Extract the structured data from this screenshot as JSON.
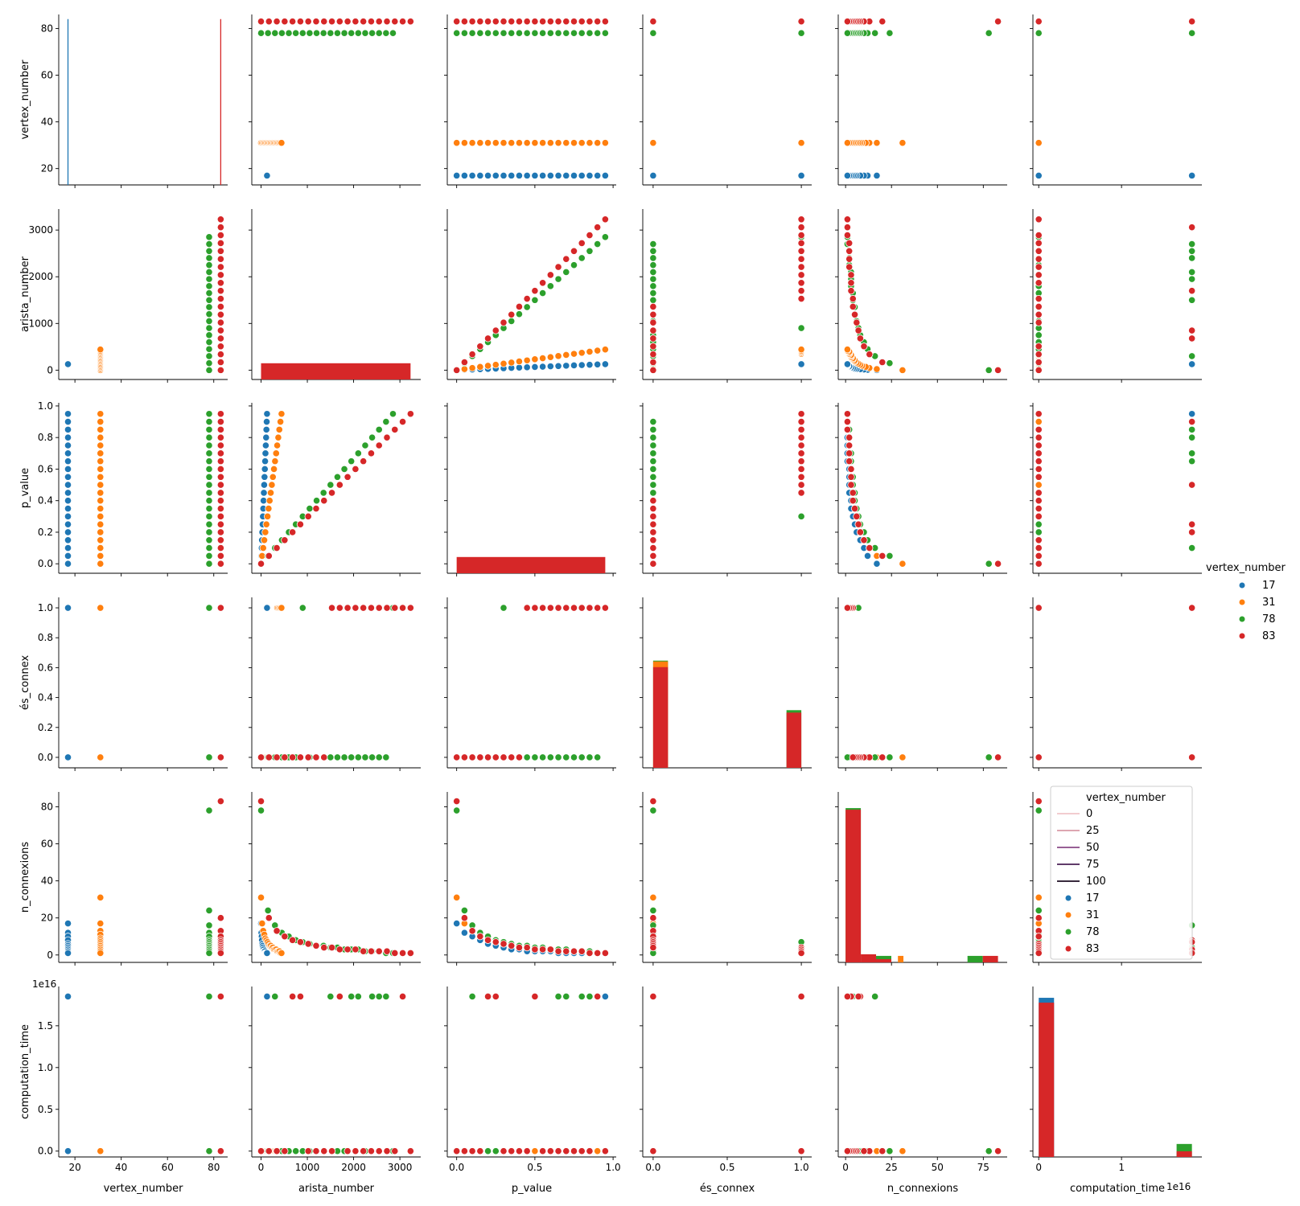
{
  "colors": {
    "17": "#1f77b4",
    "31": "#ff7f0e",
    "78": "#2ca02c",
    "83": "#d62728"
  },
  "legend": {
    "title": "vertex_number",
    "entries": [
      "17",
      "31",
      "78",
      "83"
    ]
  },
  "inner_legend": {
    "title": "vertex_number",
    "lines": [
      {
        "label": "0",
        "color": "#f0c4c8"
      },
      {
        "label": "25",
        "color": "#d89aa6"
      },
      {
        "label": "50",
        "color": "#8a4a86"
      },
      {
        "label": "75",
        "color": "#4a1f55"
      },
      {
        "label": "100",
        "color": "#1b0b20"
      }
    ],
    "dots": [
      "17",
      "31",
      "78",
      "83"
    ]
  },
  "offset_labels": {
    "y": "1e16",
    "x": "1e16"
  },
  "chart_data": {
    "type": "scatter",
    "variables": [
      "vertex_number",
      "arista_number",
      "p_value",
      "és_connex",
      "n_connexions",
      "computation_time"
    ],
    "hue": "vertex_number",
    "groups": [
      "17",
      "31",
      "78",
      "83"
    ],
    "axes": {
      "vertex_number": {
        "range": [
          13,
          86
        ],
        "ticks": [
          20,
          40,
          60,
          80
        ],
        "labels": [
          "20",
          "40",
          "60",
          "80"
        ]
      },
      "arista_number": {
        "range": [
          -200,
          3450
        ],
        "ticks": [
          0,
          1000,
          2000,
          3000
        ],
        "labels": [
          "0",
          "1000",
          "2000",
          "3000"
        ]
      },
      "p_value": {
        "range": [
          -0.06,
          1.02
        ],
        "ticks": [
          0.0,
          0.5,
          1.0
        ],
        "labels": [
          "0.0",
          "0.5",
          "1.0"
        ],
        "yticks": [
          0.0,
          0.2,
          0.4,
          0.6,
          0.8,
          1.0
        ],
        "ylabels": [
          "0.0",
          "0.2",
          "0.4",
          "0.6",
          "0.8",
          "1.0"
        ]
      },
      "és_connex": {
        "range": [
          -0.07,
          1.07
        ],
        "ticks": [
          0.0,
          0.5,
          1.0
        ],
        "labels": [
          "0.0",
          "0.5",
          "1.0"
        ],
        "yticks": [
          0.0,
          0.2,
          0.4,
          0.6,
          0.8,
          1.0
        ],
        "ylabels": [
          "0.0",
          "0.2",
          "0.4",
          "0.6",
          "0.8",
          "1.0"
        ]
      },
      "n_connexions": {
        "range": [
          -4,
          88
        ],
        "ticks": [
          0,
          25,
          50,
          75
        ],
        "labels": [
          "0",
          "25",
          "50",
          "75"
        ],
        "yticks": [
          0,
          20,
          40,
          60,
          80
        ],
        "ylabels": [
          "0",
          "20",
          "40",
          "60",
          "80"
        ]
      },
      "computation_time": {
        "range": [
          -0.07,
          1.97
        ],
        "ticks": [
          0,
          1
        ],
        "labels": [
          "0",
          "1"
        ],
        "yticks": [
          0.0,
          0.5,
          1.0,
          1.5
        ],
        "ylabels": [
          "0.0",
          "0.5",
          "1.0",
          "1.5"
        ]
      }
    },
    "data": {
      "p_values": [
        0.0,
        0.05,
        0.1,
        0.15,
        0.2,
        0.25,
        0.3,
        0.35,
        0.4,
        0.45,
        0.5,
        0.55,
        0.6,
        0.65,
        0.7,
        0.75,
        0.8,
        0.85,
        0.9,
        0.95
      ],
      "17": {
        "arista_number": [
          0,
          7,
          14,
          20,
          27,
          34,
          41,
          48,
          54,
          61,
          68,
          75,
          82,
          88,
          95,
          102,
          109,
          116,
          122,
          129
        ],
        "és_connex": [
          0,
          0,
          0,
          0,
          0,
          0,
          0,
          0,
          0,
          0,
          0,
          0,
          0,
          0,
          0,
          0,
          0,
          0,
          0,
          1
        ],
        "n_connexions": [
          17,
          12,
          10,
          8,
          6,
          5,
          4,
          3,
          3,
          2,
          2,
          2,
          2,
          1,
          1,
          1,
          1,
          1,
          1,
          1
        ],
        "computation_time": [
          0,
          0,
          0,
          0,
          0,
          0,
          0,
          0,
          0,
          0,
          0,
          0,
          0,
          0,
          0,
          0,
          0,
          0,
          0,
          1.85
        ]
      },
      "31": {
        "arista_number": [
          0,
          23,
          47,
          70,
          93,
          116,
          140,
          163,
          186,
          209,
          233,
          256,
          279,
          302,
          326,
          349,
          372,
          395,
          419,
          442
        ],
        "és_connex": [
          0,
          0,
          0,
          0,
          0,
          0,
          0,
          0,
          0,
          0,
          0,
          0,
          0,
          0,
          0,
          1,
          1,
          1,
          1,
          1
        ],
        "n_connexions": [
          31,
          17,
          13,
          11,
          9,
          8,
          7,
          6,
          5,
          5,
          4,
          4,
          3,
          3,
          3,
          2,
          2,
          2,
          1,
          1
        ],
        "computation_time": [
          0,
          0,
          0,
          0,
          0,
          0,
          0,
          0,
          0,
          0,
          0,
          0,
          0,
          0,
          0,
          0,
          0,
          0,
          0,
          0
        ]
      },
      "78": {
        "arista_number": [
          0,
          150,
          300,
          450,
          600,
          750,
          900,
          1050,
          1200,
          1350,
          1500,
          1650,
          1800,
          1950,
          2100,
          2250,
          2400,
          2550,
          2700,
          2850
        ],
        "és_connex": [
          0,
          0,
          0,
          0,
          0,
          0,
          1,
          0,
          0,
          0,
          0,
          0,
          0,
          0,
          0,
          0,
          0,
          0,
          0,
          1
        ],
        "n_connexions": [
          78,
          24,
          16,
          12,
          10,
          8,
          7,
          6,
          5,
          5,
          4,
          4,
          3,
          3,
          3,
          2,
          2,
          2,
          1,
          1
        ],
        "computation_time": [
          0,
          0,
          1.85,
          0,
          0,
          0,
          0,
          0,
          0,
          0,
          1.85,
          0,
          0,
          1.85,
          1.85,
          0,
          1.85,
          1.85,
          1.85,
          0
        ]
      },
      "83": {
        "arista_number": [
          0,
          170,
          340,
          510,
          680,
          850,
          1020,
          1190,
          1360,
          1530,
          1700,
          1870,
          2040,
          2210,
          2380,
          2550,
          2720,
          2890,
          3060,
          3230
        ],
        "és_connex": [
          0,
          0,
          0,
          0,
          0,
          0,
          0,
          0,
          0,
          1,
          1,
          1,
          1,
          1,
          1,
          1,
          1,
          1,
          1,
          1
        ],
        "n_connexions": [
          83,
          20,
          13,
          10,
          8,
          7,
          6,
          5,
          4,
          4,
          3,
          3,
          3,
          2,
          2,
          2,
          2,
          1,
          1,
          1
        ],
        "computation_time": [
          0,
          0,
          0,
          0,
          1.85,
          1.85,
          0,
          0,
          0,
          0,
          1.85,
          0,
          0,
          0,
          0,
          0,
          0,
          0,
          1.85,
          0
        ]
      }
    },
    "diagonal": {
      "vertex_number": {
        "type": "lines",
        "items": [
          {
            "group": "17",
            "x": 17,
            "height": 84
          },
          {
            "group": "83",
            "x": 83,
            "height": 84
          }
        ]
      },
      "arista_number": {
        "type": "hist",
        "bars": [
          {
            "x0": 0,
            "x1": 3230,
            "top": 0.1
          }
        ],
        "ymax": 1.0
      },
      "p_value": {
        "type": "hist",
        "bars": [
          {
            "x0": 0.0,
            "x1": 0.95,
            "top": 0.1
          }
        ],
        "ymax": 1.0
      },
      "és_connex": {
        "type": "hist",
        "ymax": 1.0,
        "bars": [
          {
            "x0": 0.0,
            "x1": 0.1,
            "stack": [
              {
                "group": "78",
                "top": 0.66
              },
              {
                "group": "31",
                "top": 0.655
              },
              {
                "group": "83",
                "top": 0.62
              }
            ]
          },
          {
            "x0": 0.9,
            "x1": 1.0,
            "stack": [
              {
                "group": "78",
                "top": 0.355
              },
              {
                "group": "83",
                "top": 0.34
              }
            ]
          }
        ]
      },
      "n_connexions": {
        "type": "hist",
        "ymax": 1.0,
        "bars": [
          {
            "x0": 0.0,
            "x1": 8.3,
            "stack": [
              {
                "group": "78",
                "top": 0.95
              },
              {
                "group": "83",
                "top": 0.94
              }
            ]
          },
          {
            "x0": 8.3,
            "x1": 16.6,
            "stack": [
              {
                "group": "83",
                "top": 0.05
              }
            ]
          },
          {
            "x0": 16.6,
            "x1": 24.9,
            "stack": [
              {
                "group": "78",
                "top": 0.04
              },
              {
                "group": "83",
                "top": 0.02
              }
            ]
          },
          {
            "x0": 28.5,
            "x1": 31.5,
            "stack": [
              {
                "group": "31",
                "top": 0.04
              }
            ]
          },
          {
            "x0": 66.4,
            "x1": 74.7,
            "stack": [
              {
                "group": "78",
                "top": 0.04
              }
            ]
          },
          {
            "x0": 74.7,
            "x1": 83.0,
            "stack": [
              {
                "group": "83",
                "top": 0.04
              }
            ]
          }
        ]
      },
      "computation_time": {
        "type": "hist",
        "ymax": 1.0,
        "bars": [
          {
            "x0": 0.0,
            "x1": 0.185,
            "stack": [
              {
                "group": "17",
                "top": 0.98
              },
              {
                "group": "83",
                "top": 0.95
              }
            ]
          },
          {
            "x0": 1.665,
            "x1": 1.85,
            "stack": [
              {
                "group": "78",
                "top": 0.08
              },
              {
                "group": "83",
                "top": 0.035
              }
            ]
          }
        ]
      }
    }
  }
}
